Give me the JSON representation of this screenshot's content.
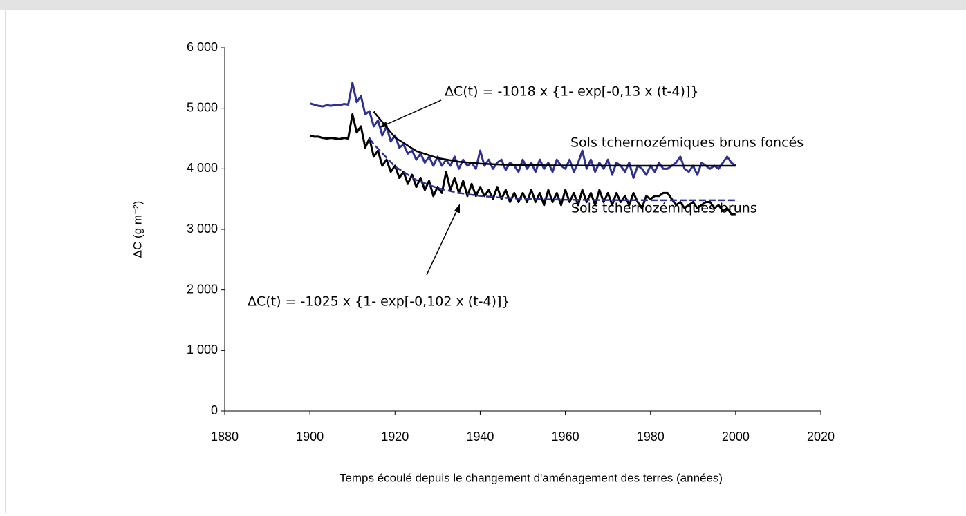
{
  "chart_data": {
    "type": "line",
    "xlabel": "Temps écoulé depuis le changement d'aménagement des terres (années)",
    "ylabel": "ΔC (g m⁻²)",
    "xlim": [
      1880,
      2020
    ],
    "xticks": [
      1880,
      1900,
      1920,
      1940,
      1960,
      1980,
      2000,
      2020
    ],
    "ylim": [
      0,
      6000
    ],
    "yticks": [
      0,
      {
        "value": 1000,
        "label": "1 000"
      },
      {
        "value": 2000,
        "label": "2 000"
      },
      {
        "value": 3000,
        "label": "3 000"
      },
      {
        "value": 4000,
        "label": "4 000"
      },
      {
        "value": 5000,
        "label": "5 000"
      },
      {
        "value": 6000,
        "label": "6 000"
      }
    ],
    "annotations": [
      "ΔC(t) = -1018 x {1- exp[-0,13 x (t-4)]}",
      "ΔC(t) = -1025 x {1- exp[-0,102 x (t-4)]}"
    ],
    "series": [
      {
        "name": "Sols tchernozémiques bruns foncés",
        "color": "#2e3192",
        "x": [
          1900,
          1901,
          1902,
          1903,
          1904,
          1905,
          1906,
          1907,
          1908,
          1909,
          1910,
          1911,
          1912,
          1913,
          1914,
          1915,
          1916,
          1917,
          1918,
          1919,
          1920,
          1921,
          1922,
          1923,
          1924,
          1925,
          1926,
          1927,
          1928,
          1929,
          1930,
          1931,
          1932,
          1933,
          1934,
          1935,
          1936,
          1937,
          1938,
          1939,
          1940,
          1941,
          1942,
          1943,
          1944,
          1945,
          1946,
          1947,
          1948,
          1949,
          1950,
          1951,
          1952,
          1953,
          1954,
          1955,
          1956,
          1957,
          1958,
          1959,
          1960,
          1961,
          1962,
          1963,
          1964,
          1965,
          1966,
          1967,
          1968,
          1969,
          1970,
          1971,
          1972,
          1973,
          1974,
          1975,
          1976,
          1977,
          1978,
          1979,
          1980,
          1981,
          1982,
          1983,
          1984,
          1985,
          1986,
          1987,
          1988,
          1989,
          1990,
          1991,
          1992,
          1993,
          1994,
          1995,
          1996,
          1997,
          1998,
          1999,
          2000
        ],
        "values": [
          5080,
          5060,
          5040,
          5030,
          5050,
          5040,
          5060,
          5050,
          5070,
          5060,
          5420,
          5100,
          5200,
          4900,
          4950,
          4700,
          4800,
          4550,
          4700,
          4450,
          4550,
          4350,
          4400,
          4250,
          4300,
          4150,
          4250,
          4100,
          4200,
          4050,
          4200,
          4050,
          4150,
          4050,
          4200,
          4000,
          4150,
          4050,
          4100,
          4000,
          4300,
          4050,
          4150,
          4000,
          4100,
          4150,
          3980,
          4100,
          4050,
          3950,
          4150,
          4000,
          4100,
          3950,
          4150,
          4000,
          4100,
          3950,
          4150,
          4050,
          4000,
          4150,
          3950,
          4100,
          4300,
          4000,
          4150,
          3950,
          4100,
          4000,
          4150,
          3900,
          4100,
          4050,
          3950,
          4100,
          3850,
          4050,
          4000,
          3900,
          4050,
          3950,
          4100,
          4000,
          4000,
          4050,
          4100,
          4200,
          4000,
          3950,
          4050,
          3900,
          4100,
          4050,
          4000,
          4050,
          4000,
          4100,
          4200,
          4100,
          4050
        ]
      },
      {
        "name": "Sols tchernozémiques bruns",
        "color": "#000000",
        "x": [
          1900,
          1901,
          1902,
          1903,
          1904,
          1905,
          1906,
          1907,
          1908,
          1909,
          1910,
          1911,
          1912,
          1913,
          1914,
          1915,
          1916,
          1917,
          1918,
          1919,
          1920,
          1921,
          1922,
          1923,
          1924,
          1925,
          1926,
          1927,
          1928,
          1929,
          1930,
          1931,
          1932,
          1933,
          1934,
          1935,
          1936,
          1937,
          1938,
          1939,
          1940,
          1941,
          1942,
          1943,
          1944,
          1945,
          1946,
          1947,
          1948,
          1949,
          1950,
          1951,
          1952,
          1953,
          1954,
          1955,
          1956,
          1957,
          1958,
          1959,
          1960,
          1961,
          1962,
          1963,
          1964,
          1965,
          1966,
          1967,
          1968,
          1969,
          1970,
          1971,
          1972,
          1973,
          1974,
          1975,
          1976,
          1977,
          1978,
          1979,
          1980,
          1981,
          1982,
          1983,
          1984,
          1985,
          1986,
          1987,
          1988,
          1989,
          1990,
          1991,
          1992,
          1993,
          1994,
          1995,
          1996,
          1997,
          1998,
          1999,
          2000
        ],
        "values": [
          4550,
          4530,
          4530,
          4510,
          4500,
          4510,
          4500,
          4490,
          4510,
          4500,
          4900,
          4600,
          4700,
          4350,
          4500,
          4200,
          4300,
          4050,
          4150,
          3950,
          4050,
          3850,
          3950,
          3750,
          3900,
          3700,
          3850,
          3650,
          3800,
          3550,
          3700,
          3600,
          3950,
          3650,
          3850,
          3600,
          3800,
          3550,
          3750,
          3550,
          3700,
          3550,
          3650,
          3500,
          3700,
          3500,
          3650,
          3450,
          3600,
          3450,
          3600,
          3450,
          3650,
          3450,
          3600,
          3400,
          3650,
          3450,
          3600,
          3400,
          3650,
          3450,
          3600,
          3400,
          3650,
          3450,
          3600,
          3400,
          3650,
          3450,
          3600,
          3400,
          3600,
          3450,
          3550,
          3400,
          3600,
          3450,
          3350,
          3550,
          3500,
          3550,
          3550,
          3600,
          3600,
          3500,
          3400,
          3450,
          3350,
          3400,
          3450,
          3350,
          3400,
          3450,
          3450,
          3350,
          3400,
          3300,
          3350,
          3250,
          3250
        ]
      },
      {
        "color": "#000000",
        "x": [
          1915,
          1920,
          1925,
          1930,
          1935,
          1940,
          1945,
          1950,
          1955,
          1960,
          1965,
          1970,
          1975,
          1980,
          1985,
          1990,
          1995,
          2000
        ],
        "values": [
          4944,
          4516,
          4293,
          4177,
          4116,
          4085,
          4068,
          4060,
          4056,
          4054,
          4052,
          4051,
          4050,
          4050,
          4050,
          4050,
          4050,
          4050
        ]
      },
      {
        "color": "#2e3192",
        "dashed": true,
        "x": [
          1914,
          1915,
          1920,
          1925,
          1930,
          1935,
          1940,
          1945,
          1950,
          1955,
          1960,
          1965,
          1970,
          1975,
          1980,
          1985,
          1990,
          1995,
          2000
        ],
        "values": [
          4505,
          4406,
          4036,
          3814,
          3681,
          3600,
          3552,
          3523,
          3506,
          3496,
          3489,
          3485,
          3483,
          3482,
          3481,
          3480,
          3480,
          3480,
          3480
        ]
      }
    ]
  }
}
